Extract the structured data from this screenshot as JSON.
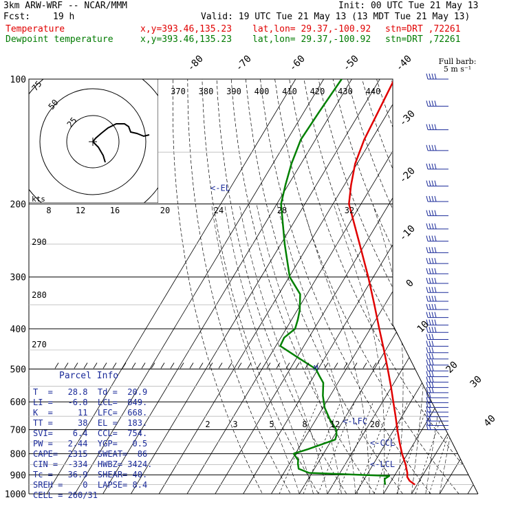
{
  "header": {
    "model": "3km ARW-WRF -- NCAR/MMM",
    "init": "Init: 00 UTC Tue 21 May 13",
    "fcst_label": "Fcst:",
    "fcst_value": "19 h",
    "valid": "Valid: 19 UTC Tue 21 May 13 (13 MDT Tue 21 May 13)",
    "temperature": {
      "label": "Temperature",
      "xy": "x,y=393.46,135.23",
      "latlon": "lat,lon= 29.37,-100.92",
      "stn": "stn=DRT ,72261"
    },
    "dewpoint": {
      "label": "Dewpoint temperature",
      "xy": "x,y=393.46,135.23",
      "latlon": "lat,lon= 29.37,-100.92",
      "stn": "stn=DRT ,72261"
    }
  },
  "barb_legend": {
    "line1": "Full barb:",
    "line2": "5 m s⁻¹"
  },
  "colors": {
    "temperature": "#e00000",
    "dewpoint": "#008000",
    "text_blue": "#1a2a99",
    "grid": "#000000"
  },
  "chart_data": {
    "type": "line",
    "subtype": "skew-t log-p",
    "y_axis": {
      "scale": "log",
      "ylim": [
        1000,
        100
      ],
      "ticks": [
        100,
        200,
        300,
        400,
        500,
        600,
        700,
        800,
        900,
        1000
      ]
    },
    "isotherm_labels": [
      -80,
      -70,
      -60,
      -50,
      -40,
      -30,
      -20,
      -10,
      0,
      10,
      20,
      30,
      40
    ],
    "theta_labels": [
      370,
      380,
      390,
      400,
      410,
      420,
      430,
      440
    ],
    "theta_low_labels": [
      290,
      280,
      270
    ],
    "mixing_ratio_labels": [
      2,
      3,
      5,
      8,
      12,
      20
    ],
    "series": [
      {
        "name": "Temperature",
        "p": [
          950,
          930,
          910,
          890,
          870,
          850,
          800,
          750,
          700,
          650,
          600,
          550,
          500,
          450,
          400,
          350,
          300,
          250,
          200,
          180,
          160,
          140,
          120,
          100
        ],
        "t": [
          29.2,
          26.5,
          24.8,
          24.0,
          22.8,
          21.6,
          18.0,
          14.6,
          11.2,
          7.7,
          3.8,
          -0.4,
          -5.2,
          -10.6,
          -16.8,
          -23.7,
          -31.8,
          -41.9,
          -54.3,
          -57.6,
          -60.7,
          -62.6,
          -63.6,
          -64.8
        ]
      },
      {
        "name": "Dewpoint temperature",
        "p": [
          950,
          930,
          920,
          905,
          890,
          870,
          845,
          830,
          800,
          780,
          740,
          720,
          700,
          660,
          620,
          580,
          540,
          520,
          500,
          470,
          440,
          420,
          400,
          380,
          360,
          330,
          300,
          250,
          200,
          180,
          160,
          140,
          120,
          100
        ],
        "t": [
          18.6,
          17.6,
          17.2,
          18.2,
          -11.0,
          -15.6,
          -17.0,
          -17.6,
          -20.6,
          -16.4,
          -8.8,
          -9.4,
          -10.6,
          -15.2,
          -19.4,
          -22.6,
          -25.2,
          -28.0,
          -30.8,
          -39.4,
          -48.4,
          -48.8,
          -46.8,
          -47.8,
          -49.2,
          -52.4,
          -59.8,
          -68.6,
          -78.5,
          -81.0,
          -83.4,
          -85.2,
          -84.6,
          -83.6
        ]
      }
    ],
    "level_markers": [
      {
        "label": "<-EL",
        "p": 183
      },
      {
        "label": "<-LFC",
        "p": 668
      },
      {
        "label": "<-CCL",
        "p": 754
      },
      {
        "label": "<-LCL",
        "p": 849
      }
    ],
    "hodograph": {
      "speed_ring_labels": [
        "75",
        "50",
        "25"
      ],
      "units_label": "kts",
      "speed_ticks": [
        8,
        12,
        16,
        20,
        24,
        28,
        32
      ]
    }
  },
  "parcel_info": {
    "title": "Parcel  Info",
    "rows": [
      "T  =   28.8  Td =  20.9",
      "LI =   -6.8  LCL=  849.",
      "K  =     11  LFC=  668.",
      "TT =     38  EL =  183.",
      "SVI=    6.4  CCL=  754.",
      "PW =   2.44  YGP=   0.5",
      "CAPE=  2315  SWEAT=  86",
      "CIN =  -334  HWBZ= 3424.",
      "Tc =   36.9  SHEAR= 40.",
      "SREH =    0  LAPSE= 8.4",
      "CELL = 260/31"
    ]
  }
}
